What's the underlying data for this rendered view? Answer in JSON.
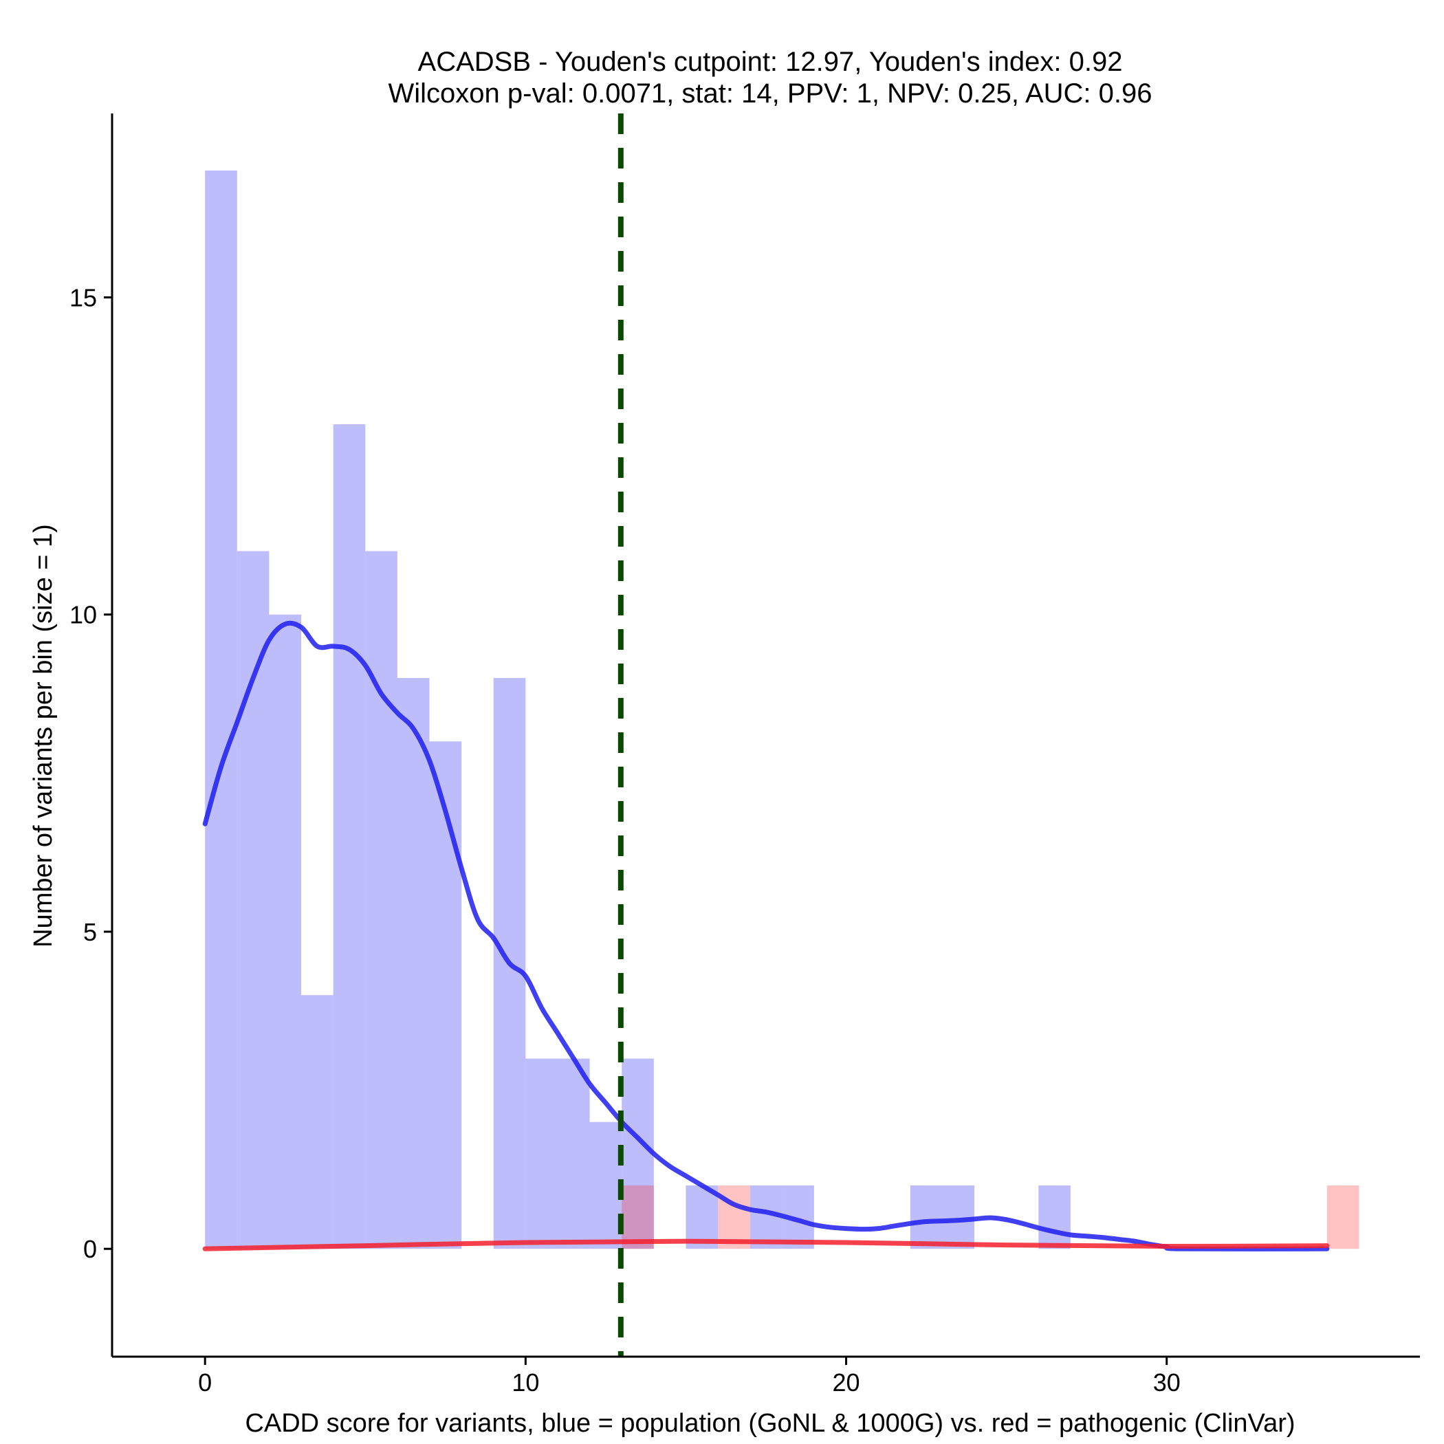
{
  "chart_data": {
    "type": "bar",
    "title_line1": "ACADSB - Youden's cutpoint: 12.97, Youden's index: 0.92",
    "title_line2": "Wilcoxon p-val: 0.0071, stat: 14, PPV: 1, NPV: 0.25, AUC: 0.96",
    "xlabel": "CADD score for variants, blue = population (GoNL & 1000G) vs. red = pathogenic (ClinVar)",
    "ylabel": "Number of variants per bin (size = 1)",
    "xlim": [
      -2.9,
      37.9
    ],
    "ylim": [
      -1.7,
      17.9
    ],
    "x_ticks": [
      0,
      10,
      20,
      30
    ],
    "y_ticks": [
      0,
      5,
      10,
      15
    ],
    "bin_width": 1,
    "cutpoint": 12.97,
    "series": [
      {
        "name": "population (GoNL & 1000G)",
        "color": "#0000ee",
        "bins": [
          {
            "start": 0,
            "count": 17
          },
          {
            "start": 1,
            "count": 11
          },
          {
            "start": 2,
            "count": 10
          },
          {
            "start": 3,
            "count": 4
          },
          {
            "start": 4,
            "count": 13
          },
          {
            "start": 5,
            "count": 11
          },
          {
            "start": 6,
            "count": 9
          },
          {
            "start": 7,
            "count": 8
          },
          {
            "start": 9,
            "count": 9
          },
          {
            "start": 10,
            "count": 3
          },
          {
            "start": 11,
            "count": 3
          },
          {
            "start": 12,
            "count": 2
          },
          {
            "start": 13,
            "count": 3
          },
          {
            "start": 15,
            "count": 1
          },
          {
            "start": 17,
            "count": 1
          },
          {
            "start": 18,
            "count": 1
          },
          {
            "start": 22,
            "count": 1
          },
          {
            "start": 23,
            "count": 1
          },
          {
            "start": 26,
            "count": 1
          }
        ],
        "density": [
          [
            0,
            6.7
          ],
          [
            0.5,
            7.6
          ],
          [
            1,
            8.3
          ],
          [
            1.5,
            9.0
          ],
          [
            2,
            9.6
          ],
          [
            2.5,
            9.85
          ],
          [
            3,
            9.8
          ],
          [
            3.5,
            9.5
          ],
          [
            4,
            9.5
          ],
          [
            4.5,
            9.45
          ],
          [
            5,
            9.2
          ],
          [
            5.5,
            8.75
          ],
          [
            6,
            8.45
          ],
          [
            6.5,
            8.2
          ],
          [
            7,
            7.7
          ],
          [
            7.5,
            6.9
          ],
          [
            8,
            6.0
          ],
          [
            8.5,
            5.2
          ],
          [
            9,
            4.9
          ],
          [
            9.5,
            4.5
          ],
          [
            10,
            4.3
          ],
          [
            10.5,
            3.8
          ],
          [
            11,
            3.4
          ],
          [
            11.5,
            3.0
          ],
          [
            12,
            2.6
          ],
          [
            12.5,
            2.3
          ],
          [
            13,
            2.0
          ],
          [
            13.5,
            1.75
          ],
          [
            14,
            1.5
          ],
          [
            14.5,
            1.3
          ],
          [
            15,
            1.15
          ],
          [
            15.5,
            1.0
          ],
          [
            16,
            0.85
          ],
          [
            16.5,
            0.7
          ],
          [
            17,
            0.62
          ],
          [
            17.5,
            0.58
          ],
          [
            18,
            0.52
          ],
          [
            18.5,
            0.45
          ],
          [
            19,
            0.38
          ],
          [
            19.5,
            0.34
          ],
          [
            20,
            0.32
          ],
          [
            20.5,
            0.31
          ],
          [
            21,
            0.32
          ],
          [
            21.5,
            0.36
          ],
          [
            22,
            0.4
          ],
          [
            22.5,
            0.43
          ],
          [
            23,
            0.44
          ],
          [
            23.5,
            0.45
          ],
          [
            24,
            0.47
          ],
          [
            24.5,
            0.49
          ],
          [
            25,
            0.46
          ],
          [
            25.5,
            0.4
          ],
          [
            26,
            0.33
          ],
          [
            26.5,
            0.27
          ],
          [
            27,
            0.22
          ],
          [
            27.5,
            0.2
          ],
          [
            28,
            0.18
          ],
          [
            28.5,
            0.15
          ],
          [
            29,
            0.12
          ],
          [
            29.5,
            0.07
          ],
          [
            30,
            0.03
          ],
          [
            30.5,
            0.0
          ],
          [
            35,
            0.0
          ]
        ]
      },
      {
        "name": "pathogenic (ClinVar)",
        "color": "#ff5555",
        "bins": [
          {
            "start": 13,
            "count": 1
          },
          {
            "start": 16,
            "count": 1
          },
          {
            "start": 35,
            "count": 1
          }
        ],
        "density": [
          [
            0,
            0.0
          ],
          [
            5,
            0.05
          ],
          [
            10,
            0.1
          ],
          [
            15,
            0.12
          ],
          [
            20,
            0.1
          ],
          [
            25,
            0.06
          ],
          [
            30,
            0.04
          ],
          [
            35,
            0.05
          ]
        ]
      }
    ]
  }
}
